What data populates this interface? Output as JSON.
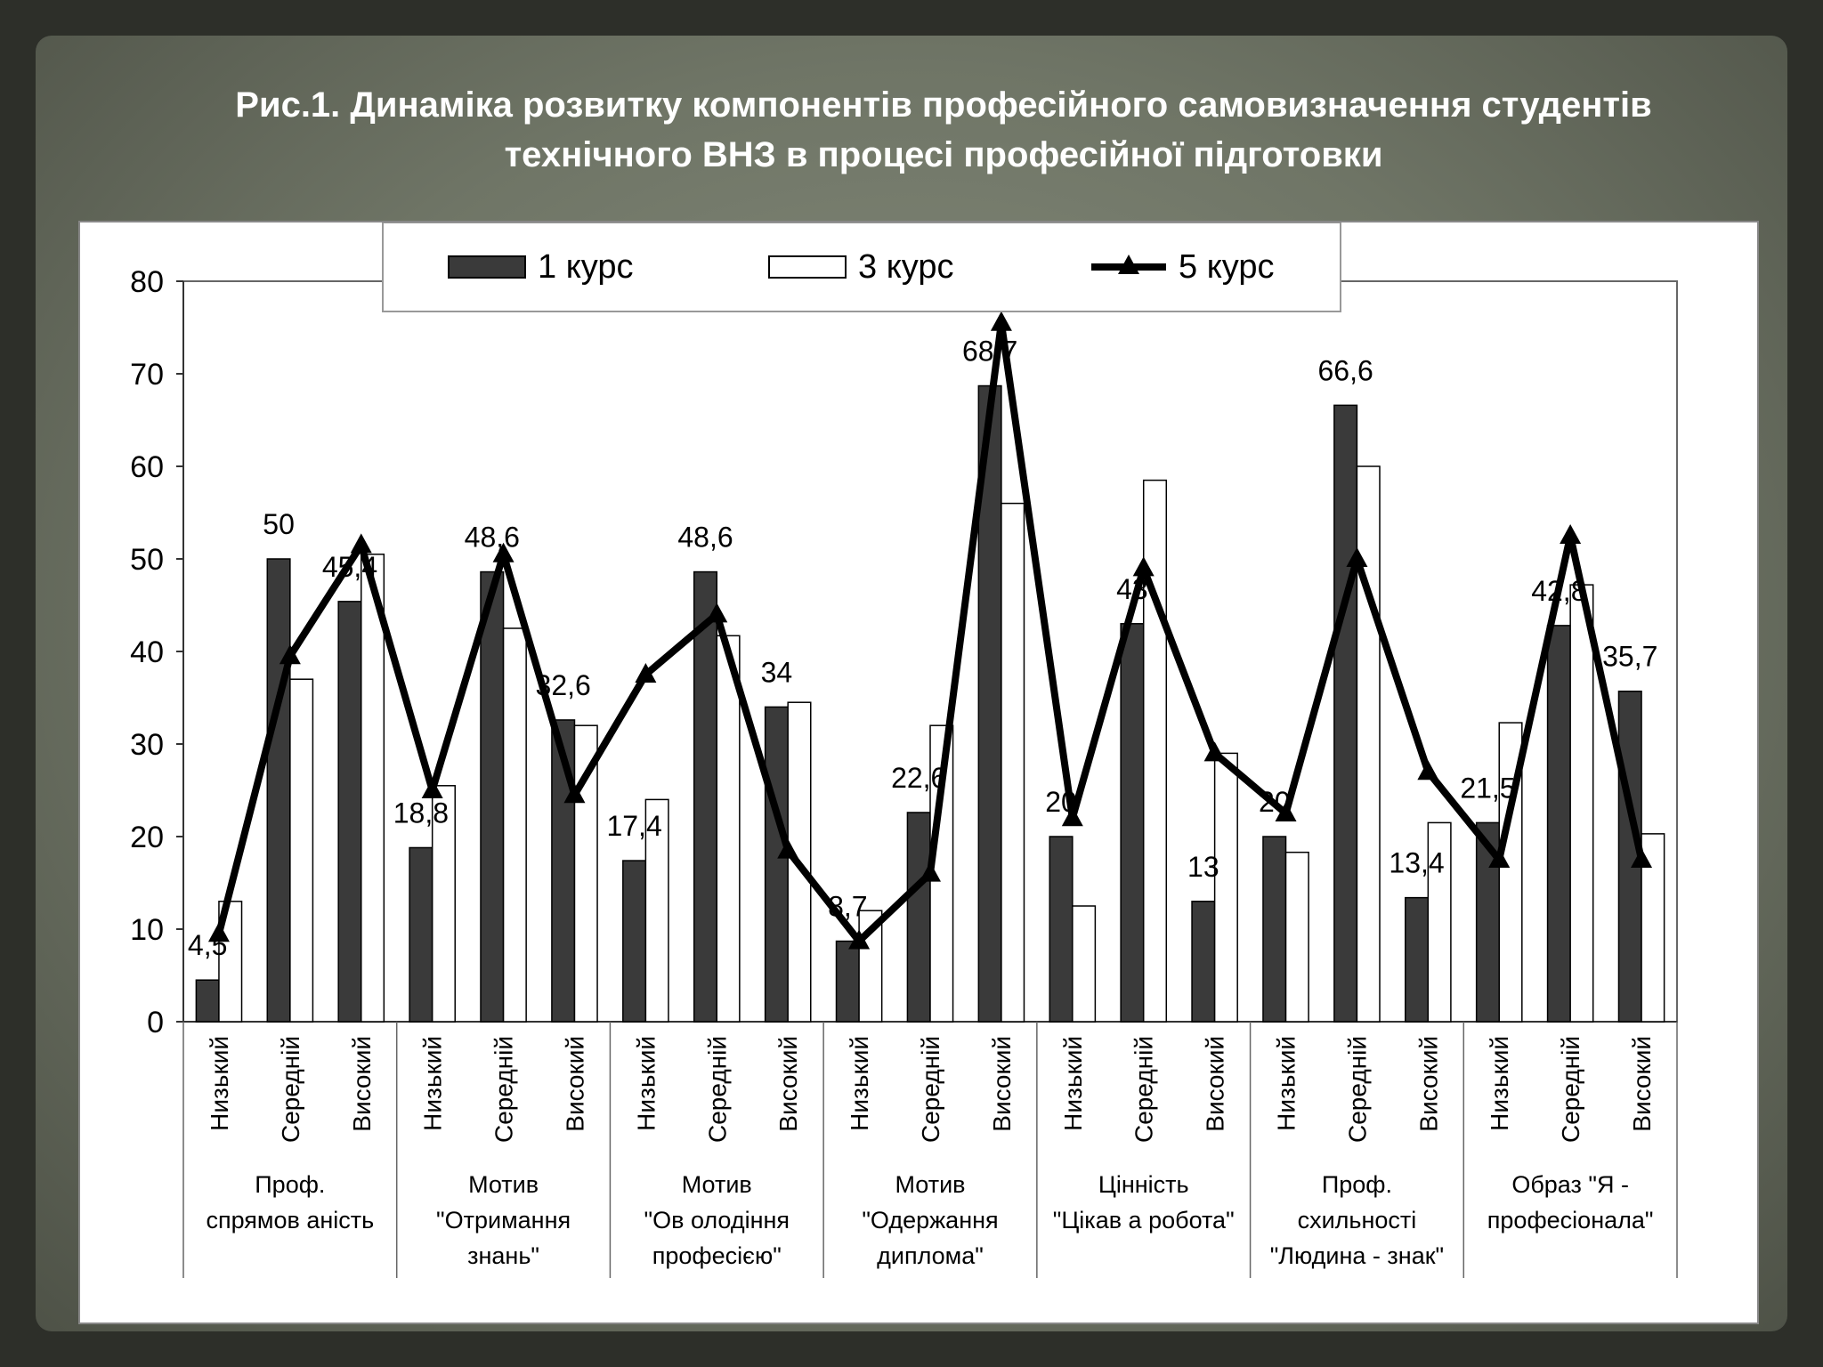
{
  "title": {
    "line1": "Рис.1. Динаміка розвитку компонентів професійного  самовизначення  студентів",
    "line2": "технічного ВНЗ в процесі професійної підготовки"
  },
  "chart_data": {
    "type": "bar",
    "legend_position": "top",
    "ylim": [
      0,
      80
    ],
    "yticks": [
      0,
      10,
      20,
      30,
      40,
      50,
      60,
      70,
      80
    ],
    "levels": [
      "Низький",
      "Середній",
      "Високий"
    ],
    "groups": [
      "Проф. спрямов аніcть",
      "Мотив \"Отримання знань\"",
      "Мотив \"Ов олодіння професією\"",
      "Мотив \"Одержання диплома\"",
      "Цінність \"Цікав а робота\"",
      "Проф. схильності \"Людина - знак\"",
      "Образ \"Я - професіонала\""
    ],
    "group_label_lines": [
      [
        "Проф.",
        "спрямов аніcть"
      ],
      [
        "Мотив",
        "\"Отримання",
        "знань\""
      ],
      [
        "Мотив",
        "\"Ов олодіння",
        "професією\""
      ],
      [
        "Мотив",
        "\"Одержання",
        "диплома\""
      ],
      [
        "Цінність",
        "\"Цікав а робота\""
      ],
      [
        "Проф.",
        "схильності",
        "\"Людина - знак\""
      ],
      [
        "Образ \"Я -",
        "професіонала\""
      ]
    ],
    "series": [
      {
        "name": "1 курс",
        "kind": "bar",
        "color": "#3a3a3a",
        "values": [
          4.5,
          50,
          45.4,
          18.8,
          48.6,
          32.6,
          17.4,
          48.6,
          34,
          8.7,
          22.6,
          68.7,
          20,
          43,
          13,
          20,
          66.6,
          13.4,
          21.5,
          42.8,
          35.7
        ]
      },
      {
        "name": "3 курс",
        "kind": "bar",
        "color": "#ffffff",
        "values": [
          13,
          37,
          50.5,
          25.5,
          42.5,
          32,
          24,
          41.7,
          34.5,
          12,
          32,
          56,
          12.5,
          58.5,
          29,
          18.3,
          60,
          21.5,
          32.3,
          47.2,
          20.3
        ]
      },
      {
        "name": "5 курс",
        "kind": "line",
        "color": "#000000",
        "values": [
          9.5,
          39.5,
          51.5,
          25,
          50.5,
          24.5,
          37.5,
          44,
          18.5,
          8.7,
          16,
          75.5,
          22,
          49,
          29,
          22.5,
          50,
          27,
          17.5,
          52.5,
          17.5
        ]
      }
    ],
    "data_labels": [
      "4,5",
      "50",
      "45,4",
      "18,8",
      "48,6",
      "32,6",
      "17,4",
      "48,6",
      "34",
      "8,7",
      "22,6",
      "68,7",
      "20",
      "43",
      "13",
      "20",
      "66,6",
      "13,4",
      "21,5",
      "42,8",
      "35,7"
    ]
  }
}
